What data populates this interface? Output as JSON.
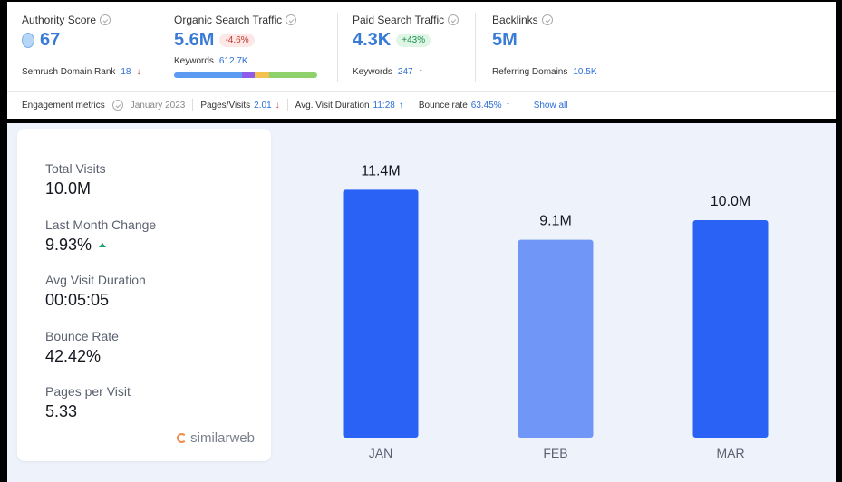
{
  "semrush": {
    "authority": {
      "title": "Authority Score",
      "value": "67",
      "sub_label": "Semrush Domain Rank",
      "sub_value": "18"
    },
    "organic": {
      "title": "Organic Search Traffic",
      "value": "5.6M",
      "change": "-4.6%",
      "sub_label": "Keywords",
      "sub_value": "612.7K"
    },
    "paid": {
      "title": "Paid Search Traffic",
      "value": "4.3K",
      "change": "+43%",
      "sub_label": "Keywords",
      "sub_value": "247"
    },
    "backlinks": {
      "title": "Backlinks",
      "value": "5M",
      "sub_label": "Referring Domains",
      "sub_value": "10.5K"
    },
    "keyword_bar_colors": [
      "#5b9cf2",
      "#8e5ce6",
      "#f2c14e",
      "#8fd16a"
    ],
    "engagement": {
      "label": "Engagement metrics",
      "date": "January 2023",
      "pages_visits_label": "Pages/Visits",
      "pages_visits_value": "2.01",
      "avg_visit_label": "Avg. Visit Duration",
      "avg_visit_value": "11:28",
      "bounce_label": "Bounce rate",
      "bounce_value": "63.45%",
      "show_all": "Show all"
    }
  },
  "similarweb": {
    "stats": [
      {
        "label": "Total Visits",
        "value": "10.0M"
      },
      {
        "label": "Last Month Change",
        "value": "9.93%"
      },
      {
        "label": "Avg Visit Duration",
        "value": "00:05:05"
      },
      {
        "label": "Bounce Rate",
        "value": "42.42%"
      },
      {
        "label": "Pages per Visit",
        "value": "5.33"
      }
    ],
    "logo_text": "similarweb"
  },
  "chart_data": {
    "type": "bar",
    "categories": [
      "JAN",
      "FEB",
      "MAR"
    ],
    "values": [
      11.4,
      9.1,
      10.0
    ],
    "data_labels": [
      "11.4M",
      "9.1M",
      "10.0M"
    ],
    "colors": [
      "#2962f5",
      "#7097f7",
      "#2962f5"
    ],
    "ylim": [
      0,
      12.5
    ],
    "grid": false
  }
}
